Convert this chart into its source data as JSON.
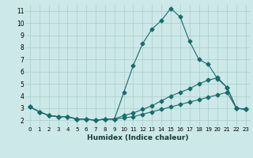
{
  "title": "",
  "xlabel": "Humidex (Indice chaleur)",
  "bg_color": "#cce8e8",
  "grid_color": "#aacccc",
  "line_color": "#1a6b6b",
  "x": [
    0,
    1,
    2,
    3,
    4,
    5,
    6,
    7,
    8,
    9,
    10,
    11,
    12,
    13,
    14,
    15,
    16,
    17,
    18,
    19,
    20,
    21,
    22,
    23
  ],
  "line1": [
    3.1,
    2.7,
    2.4,
    2.3,
    2.3,
    2.1,
    2.1,
    2.0,
    2.1,
    2.1,
    4.3,
    6.5,
    8.3,
    9.5,
    10.2,
    11.2,
    10.5,
    8.5,
    7.0,
    6.6,
    5.4,
    4.7,
    3.0,
    2.9
  ],
  "line2": [
    3.1,
    2.7,
    2.4,
    2.3,
    2.3,
    2.1,
    2.1,
    2.0,
    2.1,
    2.1,
    2.4,
    2.6,
    2.9,
    3.2,
    3.6,
    4.0,
    4.3,
    4.6,
    5.0,
    5.3,
    5.5,
    4.7,
    3.0,
    2.9
  ],
  "line3": [
    3.1,
    2.7,
    2.4,
    2.3,
    2.3,
    2.1,
    2.1,
    2.0,
    2.1,
    2.1,
    2.2,
    2.3,
    2.5,
    2.7,
    2.9,
    3.1,
    3.3,
    3.5,
    3.7,
    3.9,
    4.1,
    4.3,
    3.0,
    2.9
  ],
  "ylim": [
    1.5,
    11.5
  ],
  "yticks": [
    2,
    3,
    4,
    5,
    6,
    7,
    8,
    9,
    10,
    11
  ],
  "xlim": [
    -0.5,
    23.5
  ],
  "xtick_fontsize": 5,
  "ytick_fontsize": 5.5,
  "xlabel_fontsize": 6.5
}
